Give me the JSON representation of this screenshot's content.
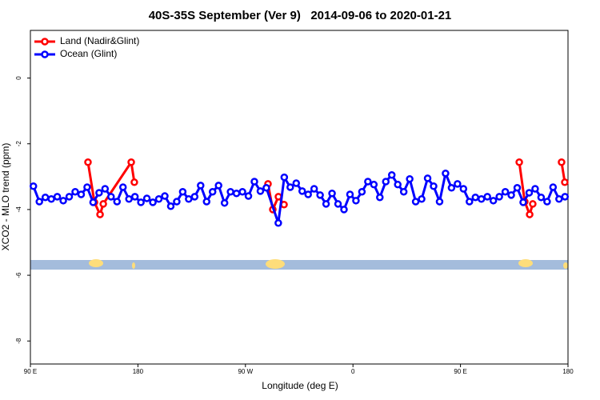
{
  "chart_data": {
    "type": "line",
    "title": "40S-35S September (Ver 9)   2014-09-06 to 2020-01-21",
    "x_label": "Longitude (deg E)",
    "y_label": "XCO2 - MLO trend (ppm)",
    "xlim": [
      90,
      540
    ],
    "ylim": [
      -8.7,
      1.45
    ],
    "xticks": [
      {
        "value": 90,
        "label": "90 E"
      },
      {
        "value": 180,
        "label": "180"
      },
      {
        "value": 270,
        "label": "90 W"
      },
      {
        "value": 360,
        "label": "0"
      },
      {
        "value": 450,
        "label": "90 E"
      },
      {
        "value": 540,
        "label": "180"
      }
    ],
    "yticks": [
      0,
      -2,
      -4,
      -6,
      -8
    ],
    "grid": false,
    "legend": "top-left",
    "series": [
      {
        "name": "Land (Nadir&Glint)",
        "color": "#ff0000",
        "x": [
          138.2,
          143.6,
          148.3,
          151,
          174.4,
          177,
          null,
          288.9,
          292.9,
          297.6,
          302.3,
          null,
          499.2,
          503.8,
          507.9,
          510.5,
          null,
          534.6,
          537.3
        ],
        "values": [
          -2.56,
          -3.78,
          -4.15,
          -3.83,
          -2.56,
          -3.17,
          null,
          -3.22,
          -4.0,
          -3.61,
          -3.85,
          null,
          -2.56,
          -3.76,
          -4.15,
          -3.83,
          null,
          -2.56,
          -3.17
        ]
      },
      {
        "name": "Ocean (Glint)",
        "color": "#0000ff",
        "x": [
          92.5,
          97.5,
          102.5,
          107.5,
          112.5,
          117.5,
          122.5,
          127.5,
          132.5,
          137.5,
          142.5,
          147.5,
          152.5,
          157.5,
          162.5,
          167.5,
          172.5,
          177.5,
          182.5,
          187.5,
          192.5,
          197.5,
          202.5,
          207.5,
          212.5,
          217.5,
          222.5,
          227.5,
          232.5,
          237.5,
          242.5,
          247.5,
          252.5,
          257.5,
          262.5,
          267.5,
          272.5,
          277.5,
          282.5,
          287.5,
          297.5,
          302.5,
          307.5,
          312.5,
          317.5,
          322.5,
          327.5,
          332.5,
          337.5,
          342.5,
          347.5,
          352.5,
          357.5,
          362.5,
          367.5,
          372.5,
          377.5,
          382.5,
          387.5,
          392.5,
          397.5,
          402.5,
          407.5,
          412.5,
          417.5,
          422.5,
          427.5,
          432.5,
          437.5,
          442.5,
          447.5,
          452.5,
          457.5,
          462.5,
          467.5,
          472.5,
          477.5,
          482.5,
          487.5,
          492.5,
          497.5,
          502.5,
          507.5,
          512.5,
          517.5,
          522.5,
          527.5,
          532.5,
          537.5
        ],
        "values": [
          -3.29,
          -3.76,
          -3.63,
          -3.68,
          -3.61,
          -3.73,
          -3.61,
          -3.46,
          -3.54,
          -3.32,
          -3.78,
          -3.49,
          -3.37,
          -3.61,
          -3.76,
          -3.32,
          -3.68,
          -3.61,
          -3.78,
          -3.66,
          -3.78,
          -3.68,
          -3.59,
          -3.9,
          -3.76,
          -3.46,
          -3.68,
          -3.61,
          -3.27,
          -3.76,
          -3.46,
          -3.27,
          -3.8,
          -3.46,
          -3.51,
          -3.46,
          -3.59,
          -3.15,
          -3.44,
          -3.34,
          -4.41,
          -3.02,
          -3.32,
          -3.2,
          -3.44,
          -3.54,
          -3.37,
          -3.56,
          -3.83,
          -3.51,
          -3.83,
          -4.0,
          -3.54,
          -3.73,
          -3.46,
          -3.15,
          -3.24,
          -3.63,
          -3.15,
          -2.95,
          -3.24,
          -3.46,
          -3.07,
          -3.76,
          -3.68,
          -3.05,
          -3.29,
          -3.76,
          -2.9,
          -3.34,
          -3.22,
          -3.37,
          -3.76,
          -3.63,
          -3.68,
          -3.61,
          -3.73,
          -3.61,
          -3.46,
          -3.56,
          -3.34,
          -3.78,
          -3.49,
          -3.37,
          -3.63,
          -3.76,
          -3.32,
          -3.68,
          -3.61
        ]
      }
    ]
  }
}
